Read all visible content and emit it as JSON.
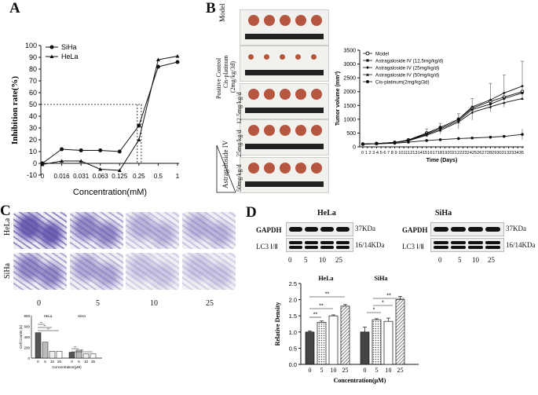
{
  "panels": {
    "a": "A",
    "b": "B",
    "c": "C",
    "d": "D"
  },
  "colors": {
    "ink": "#111111",
    "tumor": "#b5563f",
    "stain": "#5a4aa8",
    "hatch": "#777777"
  },
  "chart_data": [
    {
      "id": "A",
      "type": "line",
      "title": "",
      "xlabel": "Concentration(mM)",
      "ylabel": "Inhibition rate(%)",
      "categories": [
        "0",
        "0.016",
        "0.031",
        "0.063",
        "0.125",
        "0.25",
        "0.5",
        "1"
      ],
      "ylim": [
        -10,
        100
      ],
      "yticks": [
        "-10",
        "0",
        "10",
        "20",
        "30",
        "40",
        "50",
        "60",
        "70",
        "80",
        "90",
        "100"
      ],
      "series": [
        {
          "name": "SiHa",
          "marker": "circle",
          "values": [
            0,
            12,
            11,
            11,
            10,
            32,
            82,
            86
          ]
        },
        {
          "name": "HeLa",
          "marker": "triangle",
          "values": [
            -1,
            2,
            2,
            -5,
            -6,
            20,
            88,
            91
          ]
        }
      ],
      "reference_line_y": 50
    },
    {
      "id": "B",
      "type": "line",
      "xlabel": "Time (Days)",
      "ylabel": "Tumor volume (mm³)",
      "ylim": [
        0,
        3500
      ],
      "yticks": [
        "0",
        "500",
        "1000",
        "1500",
        "2000",
        "2500",
        "3000",
        "3500"
      ],
      "x": [
        0,
        1,
        2,
        3,
        4,
        5,
        6,
        7,
        8,
        9,
        10,
        11,
        12,
        13,
        14,
        15,
        16,
        17,
        18,
        19,
        20,
        21,
        22,
        23,
        24,
        25,
        26,
        27,
        28,
        29,
        30,
        31,
        32,
        33,
        34,
        35
      ],
      "xtick_text": "0 1 2 3 4 5 6 7 8 9 101112131415161718192021222324252627282930313233435",
      "series": [
        {
          "name": "Model",
          "marker": "open-circle",
          "points": [
            [
              0,
              100
            ],
            [
              3,
              120
            ],
            [
              7,
              160
            ],
            [
              10,
              250
            ],
            [
              14,
              500
            ],
            [
              17,
              700
            ],
            [
              21,
              1000
            ],
            [
              24,
              1400
            ],
            [
              28,
              1650
            ],
            [
              31,
              1800
            ],
            [
              35,
              2000
            ]
          ]
        },
        {
          "name": "Astragaloside IV (12.5mg/kg/d)",
          "marker": "square",
          "points": [
            [
              0,
              100
            ],
            [
              3,
              120
            ],
            [
              7,
              160
            ],
            [
              10,
              230
            ],
            [
              14,
              450
            ],
            [
              17,
              650
            ],
            [
              21,
              950
            ],
            [
              24,
              1350
            ],
            [
              28,
              1550
            ],
            [
              31,
              1750
            ],
            [
              35,
              1950
            ]
          ]
        },
        {
          "name": "Astragaloside IV (25mg/kg/d)",
          "marker": "diamond",
          "points": [
            [
              0,
              100
            ],
            [
              3,
              120
            ],
            [
              7,
              160
            ],
            [
              10,
              240
            ],
            [
              14,
              480
            ],
            [
              17,
              700
            ],
            [
              21,
              1000
            ],
            [
              24,
              1450
            ],
            [
              28,
              1700
            ],
            [
              31,
              1950
            ],
            [
              35,
              2200
            ]
          ]
        },
        {
          "name": "Astragaloside IV (50mg/kg/d)",
          "marker": "triangle",
          "points": [
            [
              0,
              100
            ],
            [
              3,
              115
            ],
            [
              7,
              150
            ],
            [
              10,
              220
            ],
            [
              14,
              420
            ],
            [
              17,
              600
            ],
            [
              21,
              900
            ],
            [
              24,
              1250
            ],
            [
              28,
              1450
            ],
            [
              31,
              1600
            ],
            [
              35,
              1750
            ]
          ]
        },
        {
          "name": "Cis-platinum(2mg/kg/3d)",
          "marker": "filled-circle",
          "points": [
            [
              0,
              100
            ],
            [
              3,
              110
            ],
            [
              7,
              130
            ],
            [
              10,
              170
            ],
            [
              14,
              230
            ],
            [
              17,
              260
            ],
            [
              21,
              300
            ],
            [
              24,
              320
            ],
            [
              28,
              350
            ],
            [
              31,
              380
            ],
            [
              35,
              450
            ]
          ]
        }
      ]
    },
    {
      "id": "C",
      "type": "bar",
      "ylabel": "Cell Counts (n)",
      "xlabel": "Concentration(μM)",
      "ylim": [
        0,
        800
      ],
      "yticks": [
        "0",
        "200",
        "400",
        "600",
        "800"
      ],
      "categories": [
        "0",
        "5",
        "10",
        "25"
      ],
      "series": [
        {
          "name": "HeLa",
          "values": [
            480,
            300,
            130,
            130
          ]
        },
        {
          "name": "SiHa",
          "values": [
            110,
            150,
            80,
            80
          ]
        }
      ],
      "significance": [
        "**",
        "**",
        "**",
        "**",
        "**"
      ]
    },
    {
      "id": "D",
      "type": "bar",
      "ylabel": "Relative Density",
      "xlabel": "Concentration(μM)",
      "ylim": [
        0,
        2.5
      ],
      "yticks": [
        "0.0",
        "0.5",
        "1.0",
        "1.5",
        "2.0",
        "2.5"
      ],
      "categories": [
        "0",
        "5",
        "10",
        "25"
      ],
      "series": [
        {
          "name": "HeLa",
          "values": [
            1.0,
            1.3,
            1.5,
            1.8
          ],
          "errors": [
            0.03,
            0.04,
            0.03,
            0.05
          ]
        },
        {
          "name": "SiHa",
          "values": [
            1.0,
            1.38,
            1.33,
            2.0
          ],
          "errors": [
            0.15,
            0.03,
            0.1,
            0.1
          ]
        }
      ],
      "significance": {
        "HeLa": [
          "**",
          "**",
          "**"
        ],
        "SiHa": [
          "*",
          "*",
          "**"
        ]
      }
    }
  ],
  "panel_b": {
    "groups": [
      "Model",
      "Positive Control",
      "Cis-platinum",
      "(2mg/kg/3d)",
      "12.5mg/kg/d",
      "25mg/kg/d",
      "50mg/kg/d"
    ],
    "astragaloside_label": "Astragaloside IV"
  },
  "panel_c": {
    "rows": [
      "HeLa",
      "SiHa"
    ],
    "doses": [
      "0",
      "5",
      "10",
      "25"
    ]
  },
  "panel_d": {
    "hela_title": "HeLa",
    "siha_title": "SiHa",
    "gapdh": "GAPDH",
    "lc3": "LC3 Ⅰ/Ⅱ",
    "kda37": "37KDa",
    "kda16": "16/14KDa",
    "doses": [
      "0",
      "5",
      "10",
      "25"
    ]
  }
}
